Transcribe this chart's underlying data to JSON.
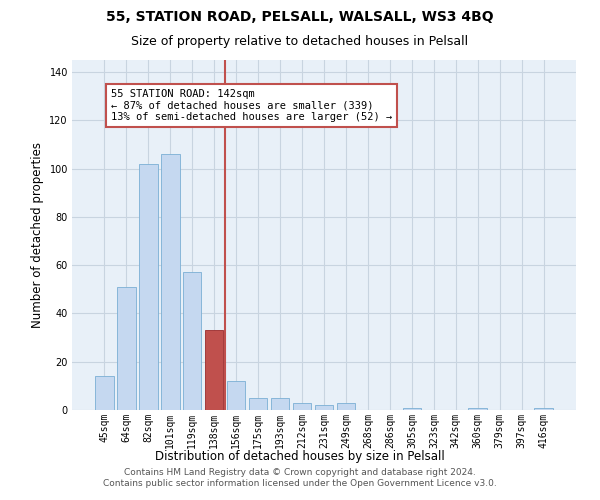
{
  "title": "55, STATION ROAD, PELSALL, WALSALL, WS3 4BQ",
  "subtitle": "Size of property relative to detached houses in Pelsall",
  "xlabel": "Distribution of detached houses by size in Pelsall",
  "ylabel": "Number of detached properties",
  "categories": [
    "45sqm",
    "64sqm",
    "82sqm",
    "101sqm",
    "119sqm",
    "138sqm",
    "156sqm",
    "175sqm",
    "193sqm",
    "212sqm",
    "231sqm",
    "249sqm",
    "268sqm",
    "286sqm",
    "305sqm",
    "323sqm",
    "342sqm",
    "360sqm",
    "379sqm",
    "397sqm",
    "416sqm"
  ],
  "values": [
    14,
    51,
    102,
    106,
    57,
    33,
    12,
    5,
    5,
    3,
    2,
    3,
    0,
    0,
    1,
    0,
    0,
    1,
    0,
    0,
    1
  ],
  "bar_color": "#c5d8f0",
  "bar_edge_color": "#7bafd4",
  "highlight_bar_index": 5,
  "highlight_bar_color": "#c0504d",
  "highlight_bar_edge_color": "#9b2b2b",
  "vline_x": 5.5,
  "vline_color": "#c0504d",
  "annotation_box_text": "55 STATION ROAD: 142sqm\n← 87% of detached houses are smaller (339)\n13% of semi-detached houses are larger (52) →",
  "annotation_box_color": "#c0504d",
  "annotation_box_facecolor": "white",
  "ylim": [
    0,
    145
  ],
  "yticks": [
    0,
    20,
    40,
    60,
    80,
    100,
    120,
    140
  ],
  "grid_color": "#c8d4e0",
  "background_color": "#e8f0f8",
  "footer_text": "Contains HM Land Registry data © Crown copyright and database right 2024.\nContains public sector information licensed under the Open Government Licence v3.0.",
  "title_fontsize": 10,
  "subtitle_fontsize": 9,
  "xlabel_fontsize": 8.5,
  "ylabel_fontsize": 8.5,
  "tick_fontsize": 7,
  "annotation_fontsize": 7.5,
  "footer_fontsize": 6.5
}
